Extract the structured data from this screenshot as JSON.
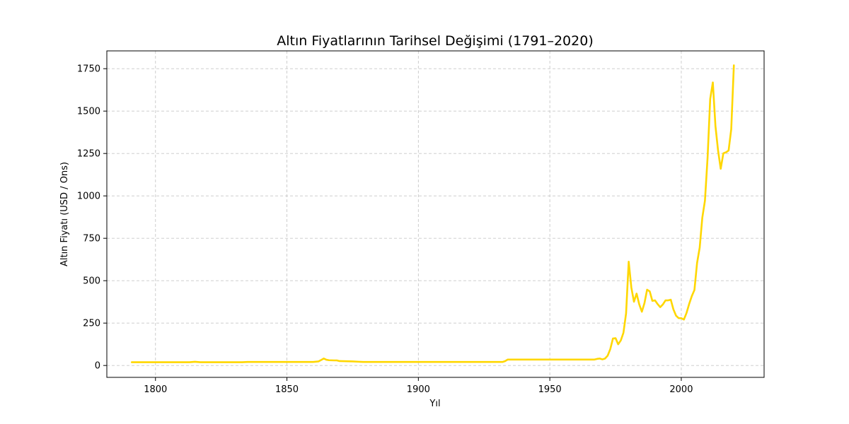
{
  "chart_data": {
    "type": "line",
    "title": "Altın Fiyatlarının Tarihsel Değişimi (1791–2020)",
    "xlabel": "Yıl",
    "ylabel": "Altın Fiyatı (USD / Ons)",
    "xlim": [
      1781.5,
      2031.5
    ],
    "ylim": [
      -70,
      1855
    ],
    "xticks": [
      1800,
      1850,
      1900,
      1950,
      2000
    ],
    "yticks": [
      0,
      250,
      500,
      750,
      1000,
      1250,
      1500,
      1750
    ],
    "grid": true,
    "line_color": "#ffd700",
    "series": [
      {
        "x": [
          1791,
          1800,
          1810,
          1813,
          1815,
          1817,
          1820,
          1830,
          1833,
          1835,
          1840,
          1850,
          1860,
          1862,
          1863,
          1864,
          1865,
          1866,
          1868,
          1869,
          1870,
          1875,
          1879,
          1890,
          1900,
          1910,
          1920,
          1930,
          1932,
          1933,
          1934,
          1940,
          1950,
          1960,
          1967,
          1968,
          1969,
          1970,
          1971,
          1972,
          1973,
          1974,
          1975,
          1976,
          1977,
          1978,
          1979,
          1980,
          1981,
          1982,
          1983,
          1984,
          1985,
          1986,
          1987,
          1988,
          1989,
          1990,
          1991,
          1992,
          1993,
          1994,
          1995,
          1996,
          1997,
          1998,
          1999,
          2000,
          2001,
          2002,
          2003,
          2004,
          2005,
          2006,
          2007,
          2008,
          2009,
          2010,
          2011,
          2012,
          2013,
          2014,
          2015,
          2016,
          2017,
          2018,
          2019,
          2020
        ],
        "y": [
          19.5,
          19.5,
          19.5,
          19.5,
          22,
          19.5,
          19.4,
          19.4,
          19.4,
          20.7,
          20.7,
          20.7,
          20.7,
          24,
          32,
          41,
          34,
          31,
          30,
          30,
          26,
          24,
          20.7,
          20.7,
          20.7,
          20.7,
          20.7,
          20.7,
          20.7,
          26,
          35,
          35,
          35,
          35,
          35,
          39,
          41,
          36,
          41,
          58,
          97,
          159,
          161,
          125,
          148,
          193,
          307,
          612,
          460,
          376,
          424,
          361,
          317,
          368,
          447,
          437,
          381,
          384,
          362,
          344,
          360,
          384,
          384,
          388,
          331,
          294,
          279,
          279,
          271,
          310,
          363,
          409,
          445,
          604,
          695,
          872,
          972,
          1225,
          1572,
          1669,
          1411,
          1266,
          1160,
          1251,
          1257,
          1268,
          1393,
          1770
        ]
      }
    ]
  }
}
